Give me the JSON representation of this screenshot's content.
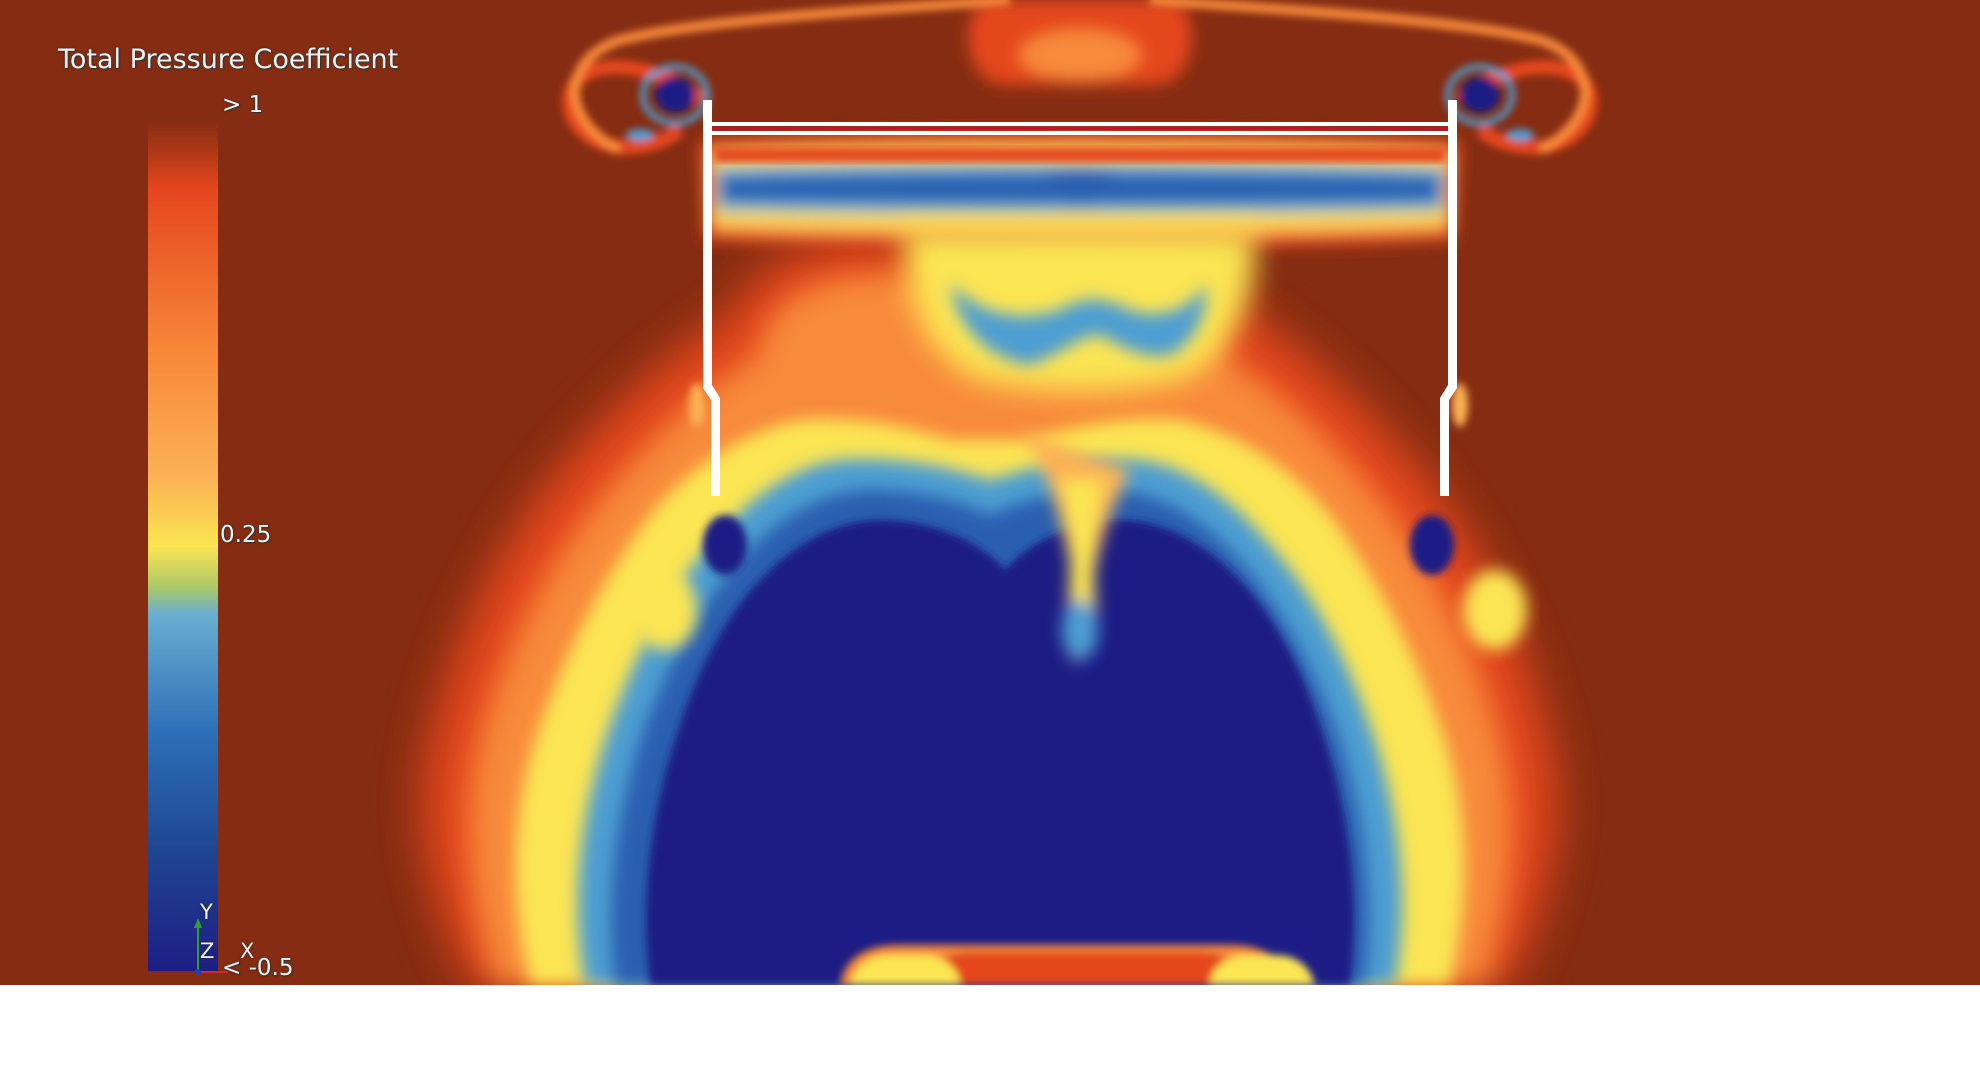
{
  "legend": {
    "title": "Total Pressure Coefficient",
    "max_label": "> 1",
    "mid_label": "0.25",
    "min_label": "< -0.5"
  },
  "axes": {
    "y": "Y",
    "z": "Z",
    "x": "X"
  },
  "colors": {
    "freestream": "#852c12",
    "core": "#1e1e84",
    "wing": "#ffffff"
  }
}
